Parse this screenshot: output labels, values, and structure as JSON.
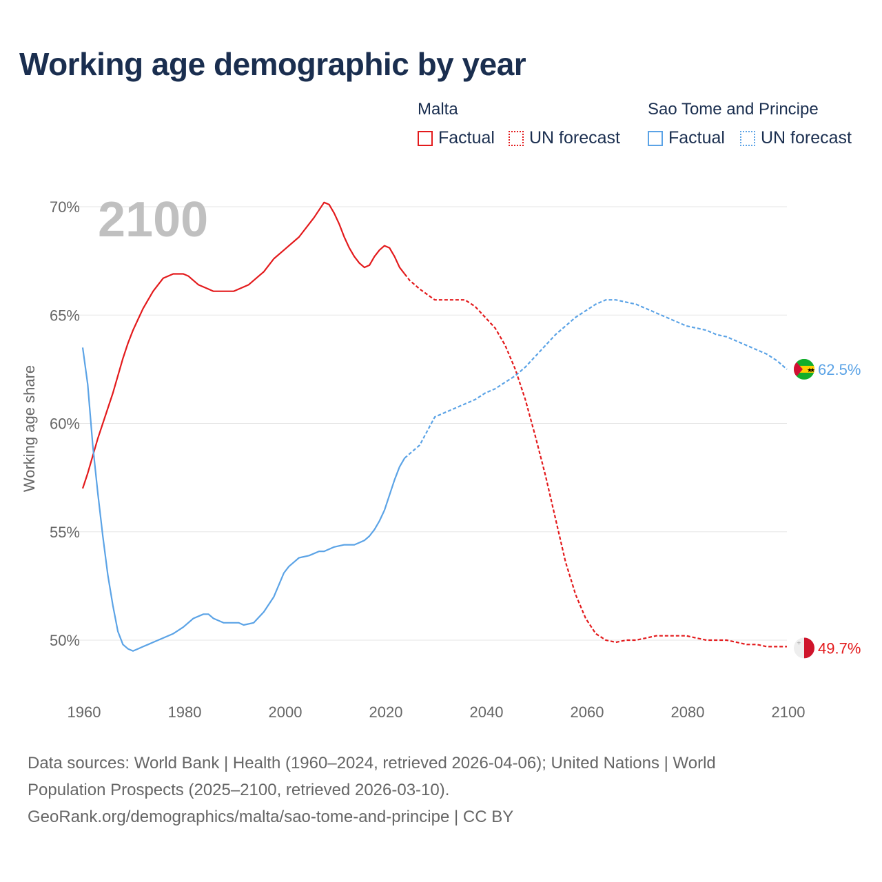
{
  "title": "Working age demographic by year",
  "legend": {
    "groups": [
      {
        "name": "Malta",
        "color": "#e31a1c",
        "items": [
          {
            "label": "Factual",
            "style": "solid"
          },
          {
            "label": "UN forecast",
            "style": "dotted"
          }
        ]
      },
      {
        "name": "Sao Tome and Principe",
        "color": "#5ba3e6",
        "items": [
          {
            "label": "Factual",
            "style": "solid"
          },
          {
            "label": "UN forecast",
            "style": "dotted"
          }
        ]
      }
    ]
  },
  "colors": {
    "malta": "#e31a1c",
    "stp": "#5ba3e6",
    "grid": "#e5e5e5",
    "title": "#1a2e4f"
  },
  "footer": {
    "line1": "Data sources: World Bank | Health (1960–2024, retrieved 2026-04-06); United Nations | World",
    "line2": "Population Prospects (2025–2100, retrieved 2026-03-10).",
    "line3": "GeoRank.org/demographics/malta/sao-tome-and-principe | CC BY"
  },
  "chart_data": {
    "type": "line",
    "title": "Working age demographic by year",
    "xlabel": "",
    "ylabel": "Working age share",
    "xlim": [
      1960,
      2100
    ],
    "ylim": [
      48,
      71
    ],
    "x_ticks": [
      1960,
      1980,
      2000,
      2020,
      2040,
      2060,
      2080,
      2100
    ],
    "y_ticks": [
      50,
      55,
      60,
      65,
      70
    ],
    "y_tick_labels": [
      "50%",
      "55%",
      "60%",
      "65%",
      "70%"
    ],
    "grid": true,
    "current_year_label": "2100",
    "forecast_start": 2024,
    "series": [
      {
        "name": "Malta",
        "color": "#e31a1c",
        "end_label": "49.7%",
        "flag_icon": "malta-flag-icon",
        "x": [
          1960,
          1961,
          1962,
          1963,
          1964,
          1965,
          1966,
          1967,
          1968,
          1969,
          1970,
          1971,
          1972,
          1973,
          1974,
          1975,
          1976,
          1977,
          1978,
          1979,
          1980,
          1981,
          1982,
          1983,
          1984,
          1985,
          1986,
          1988,
          1990,
          1993,
          1996,
          1998,
          2000,
          2003,
          2006,
          2008,
          2009,
          2010,
          2011,
          2012,
          2013,
          2014,
          2015,
          2016,
          2017,
          2018,
          2019,
          2020,
          2021,
          2022,
          2023,
          2024,
          2025,
          2027,
          2030,
          2033,
          2036,
          2038,
          2040,
          2042,
          2044,
          2046,
          2048,
          2050,
          2052,
          2054,
          2056,
          2058,
          2060,
          2062,
          2064,
          2066,
          2068,
          2070,
          2072,
          2074,
          2076,
          2078,
          2080,
          2082,
          2084,
          2086,
          2088,
          2090,
          2092,
          2094,
          2096,
          2098,
          2100
        ],
        "y": [
          57.0,
          57.7,
          58.5,
          59.3,
          60.0,
          60.7,
          61.4,
          62.2,
          63.0,
          63.7,
          64.3,
          64.8,
          65.3,
          65.7,
          66.1,
          66.4,
          66.7,
          66.8,
          66.9,
          66.9,
          66.9,
          66.8,
          66.6,
          66.4,
          66.3,
          66.2,
          66.1,
          66.1,
          66.1,
          66.4,
          67.0,
          67.6,
          68.0,
          68.6,
          69.5,
          70.2,
          70.1,
          69.7,
          69.2,
          68.6,
          68.1,
          67.7,
          67.4,
          67.2,
          67.3,
          67.7,
          68.0,
          68.2,
          68.1,
          67.7,
          67.2,
          66.9,
          66.6,
          66.2,
          65.7,
          65.7,
          65.7,
          65.4,
          64.9,
          64.4,
          63.6,
          62.5,
          61.1,
          59.4,
          57.6,
          55.6,
          53.6,
          52.1,
          51.0,
          50.3,
          50.0,
          49.9,
          50.0,
          50.0,
          50.1,
          50.2,
          50.2,
          50.2,
          50.2,
          50.1,
          50.0,
          50.0,
          50.0,
          49.9,
          49.8,
          49.8,
          49.7,
          49.7,
          49.7
        ]
      },
      {
        "name": "Sao Tome and Principe",
        "color": "#5ba3e6",
        "end_label": "62.5%",
        "flag_icon": "sao-tome-flag-icon",
        "x": [
          1960,
          1961,
          1962,
          1963,
          1964,
          1965,
          1966,
          1967,
          1968,
          1969,
          1970,
          1971,
          1972,
          1973,
          1974,
          1975,
          1976,
          1977,
          1978,
          1980,
          1982,
          1984,
          1985,
          1986,
          1988,
          1990,
          1991,
          1992,
          1994,
          1996,
          1998,
          2000,
          2001,
          2002,
          2003,
          2005,
          2007,
          2008,
          2010,
          2012,
          2014,
          2015,
          2016,
          2017,
          2018,
          2019,
          2020,
          2021,
          2022,
          2023,
          2024,
          2025,
          2027,
          2030,
          2033,
          2036,
          2038,
          2040,
          2042,
          2044,
          2046,
          2048,
          2050,
          2052,
          2054,
          2056,
          2058,
          2060,
          2062,
          2064,
          2066,
          2068,
          2070,
          2072,
          2074,
          2076,
          2078,
          2080,
          2082,
          2084,
          2086,
          2088,
          2090,
          2092,
          2094,
          2096,
          2098,
          2100
        ],
        "y": [
          63.5,
          61.8,
          59.0,
          56.8,
          54.8,
          53.0,
          51.6,
          50.4,
          49.8,
          49.6,
          49.5,
          49.6,
          49.7,
          49.8,
          49.9,
          50.0,
          50.1,
          50.2,
          50.3,
          50.6,
          51.0,
          51.2,
          51.2,
          51.0,
          50.8,
          50.8,
          50.8,
          50.7,
          50.8,
          51.3,
          52.0,
          53.1,
          53.4,
          53.6,
          53.8,
          53.9,
          54.1,
          54.1,
          54.3,
          54.4,
          54.4,
          54.5,
          54.6,
          54.8,
          55.1,
          55.5,
          56.0,
          56.7,
          57.4,
          58.0,
          58.4,
          58.6,
          59.0,
          60.3,
          60.6,
          60.9,
          61.1,
          61.4,
          61.6,
          61.9,
          62.2,
          62.6,
          63.1,
          63.6,
          64.1,
          64.5,
          64.9,
          65.2,
          65.5,
          65.7,
          65.7,
          65.6,
          65.5,
          65.3,
          65.1,
          64.9,
          64.7,
          64.5,
          64.4,
          64.3,
          64.1,
          64.0,
          63.8,
          63.6,
          63.4,
          63.2,
          62.9,
          62.5
        ]
      }
    ]
  }
}
